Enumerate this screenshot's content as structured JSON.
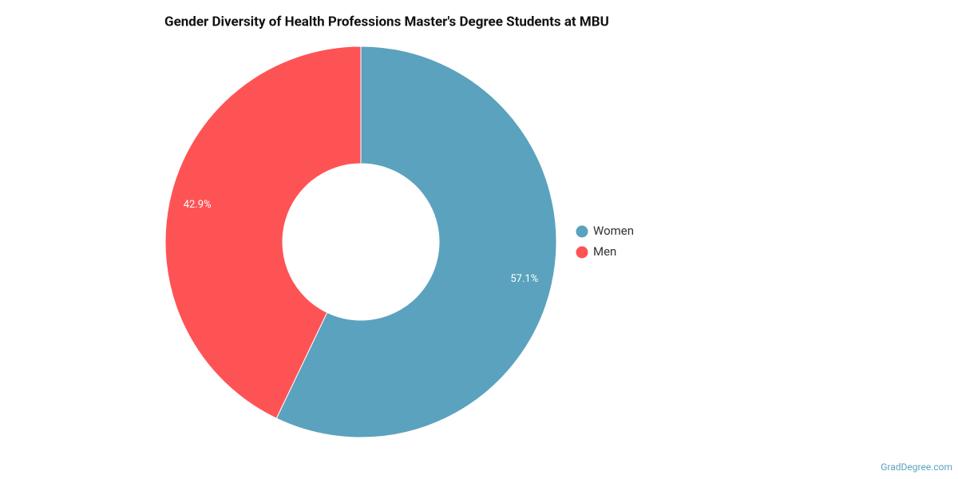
{
  "chart_data": {
    "type": "donut",
    "title": "Gender Diversity of Health Professions Master's Degree Students at MBU",
    "categories": [
      "Women",
      "Men"
    ],
    "values": [
      57.1,
      42.9
    ],
    "value_labels": [
      "57.1%",
      "42.9%"
    ],
    "colors": [
      "#5ba2be",
      "#fe5355"
    ],
    "legend": "right"
  },
  "credit": "GradDegree.com"
}
